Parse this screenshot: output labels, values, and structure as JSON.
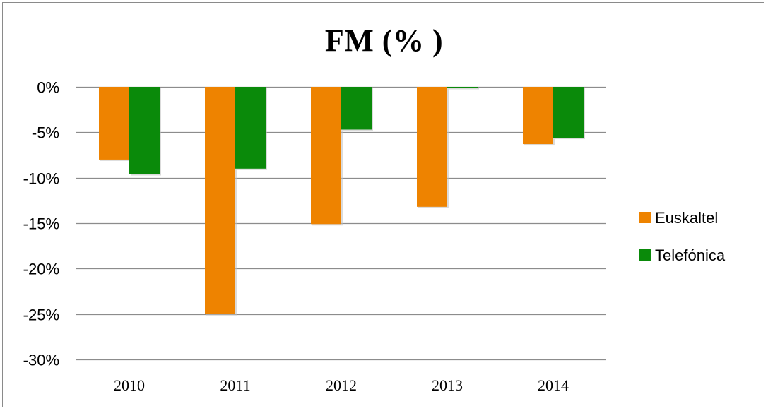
{
  "chart_data": {
    "type": "bar",
    "title": "FM (% )",
    "categories": [
      "2010",
      "2011",
      "2012",
      "2013",
      "2014"
    ],
    "series": [
      {
        "name": "Euskaltel",
        "color": "#ee8300",
        "values": [
          -8.0,
          -25.0,
          -15.1,
          -13.2,
          -6.3
        ]
      },
      {
        "name": "Telefónica",
        "color": "#0a8a0a",
        "values": [
          -9.6,
          -9.0,
          -4.7,
          0.0,
          -5.6
        ]
      }
    ],
    "ylim": [
      -30,
      0
    ],
    "yticks": [
      0,
      -5,
      -10,
      -15,
      -20,
      -25,
      -30
    ],
    "ytick_labels": [
      "0%",
      "-5%",
      "-10%",
      "-15%",
      "-20%",
      "-25%",
      "-30%"
    ],
    "grid": true,
    "legend_position": "right",
    "xlabel": "",
    "ylabel": ""
  }
}
